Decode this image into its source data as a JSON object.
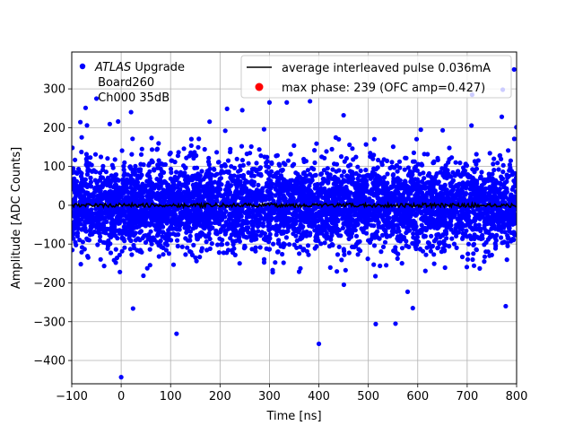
{
  "chart_data": {
    "type": "scatter",
    "title": "",
    "xlabel": "Time [ns]",
    "ylabel": "Amplitude [ADC Counts]",
    "xlim": [
      -100,
      800
    ],
    "ylim": [
      -460,
      395
    ],
    "xticks": [
      -100,
      0,
      100,
      200,
      300,
      400,
      500,
      600,
      700,
      800
    ],
    "yticks": [
      -400,
      -300,
      -200,
      -100,
      0,
      100,
      200,
      300
    ],
    "grid": true,
    "legend_placement": "top",
    "colors": {
      "scatter": "#0000ff",
      "line": "#000000",
      "max_marker": "#ff0000"
    },
    "annotation": {
      "italic_part": "ATLAS",
      "rest_line1": " Upgrade",
      "line2": " Board260",
      "line3": " Ch000 35dB"
    },
    "series": [
      {
        "name": "average interleaved pulse 0.036mA",
        "kind": "line",
        "x_range": [
          -100,
          800
        ],
        "level": 0,
        "noise_amplitude": 5
      },
      {
        "name": "max phase: 239 (OFC amp=0.427)",
        "kind": "marker",
        "points": []
      },
      {
        "name": "samples",
        "kind": "scatter",
        "x_range": [
          -100,
          800
        ],
        "band_center": 0,
        "band_sigma": 55,
        "approx_count": 5000,
        "outliers": [
          {
            "x": 0,
            "y": -443
          },
          {
            "x": 400,
            "y": -357
          },
          {
            "x": 112,
            "y": -331
          },
          {
            "x": 515,
            "y": -306
          },
          {
            "x": 555,
            "y": -305
          },
          {
            "x": 590,
            "y": -265
          },
          {
            "x": 24,
            "y": -266
          },
          {
            "x": 778,
            "y": -260
          },
          {
            "x": 300,
            "y": 265
          },
          {
            "x": 335,
            "y": 265
          },
          {
            "x": -50,
            "y": 275
          },
          {
            "x": 795,
            "y": 350
          },
          {
            "x": 772,
            "y": 298
          },
          {
            "x": 710,
            "y": 285
          },
          {
            "x": 20,
            "y": 240
          },
          {
            "x": 382,
            "y": 268
          },
          {
            "x": 450,
            "y": 232
          },
          {
            "x": 245,
            "y": 245
          },
          {
            "x": -72,
            "y": 251
          },
          {
            "x": 770,
            "y": 228
          }
        ]
      }
    ]
  }
}
